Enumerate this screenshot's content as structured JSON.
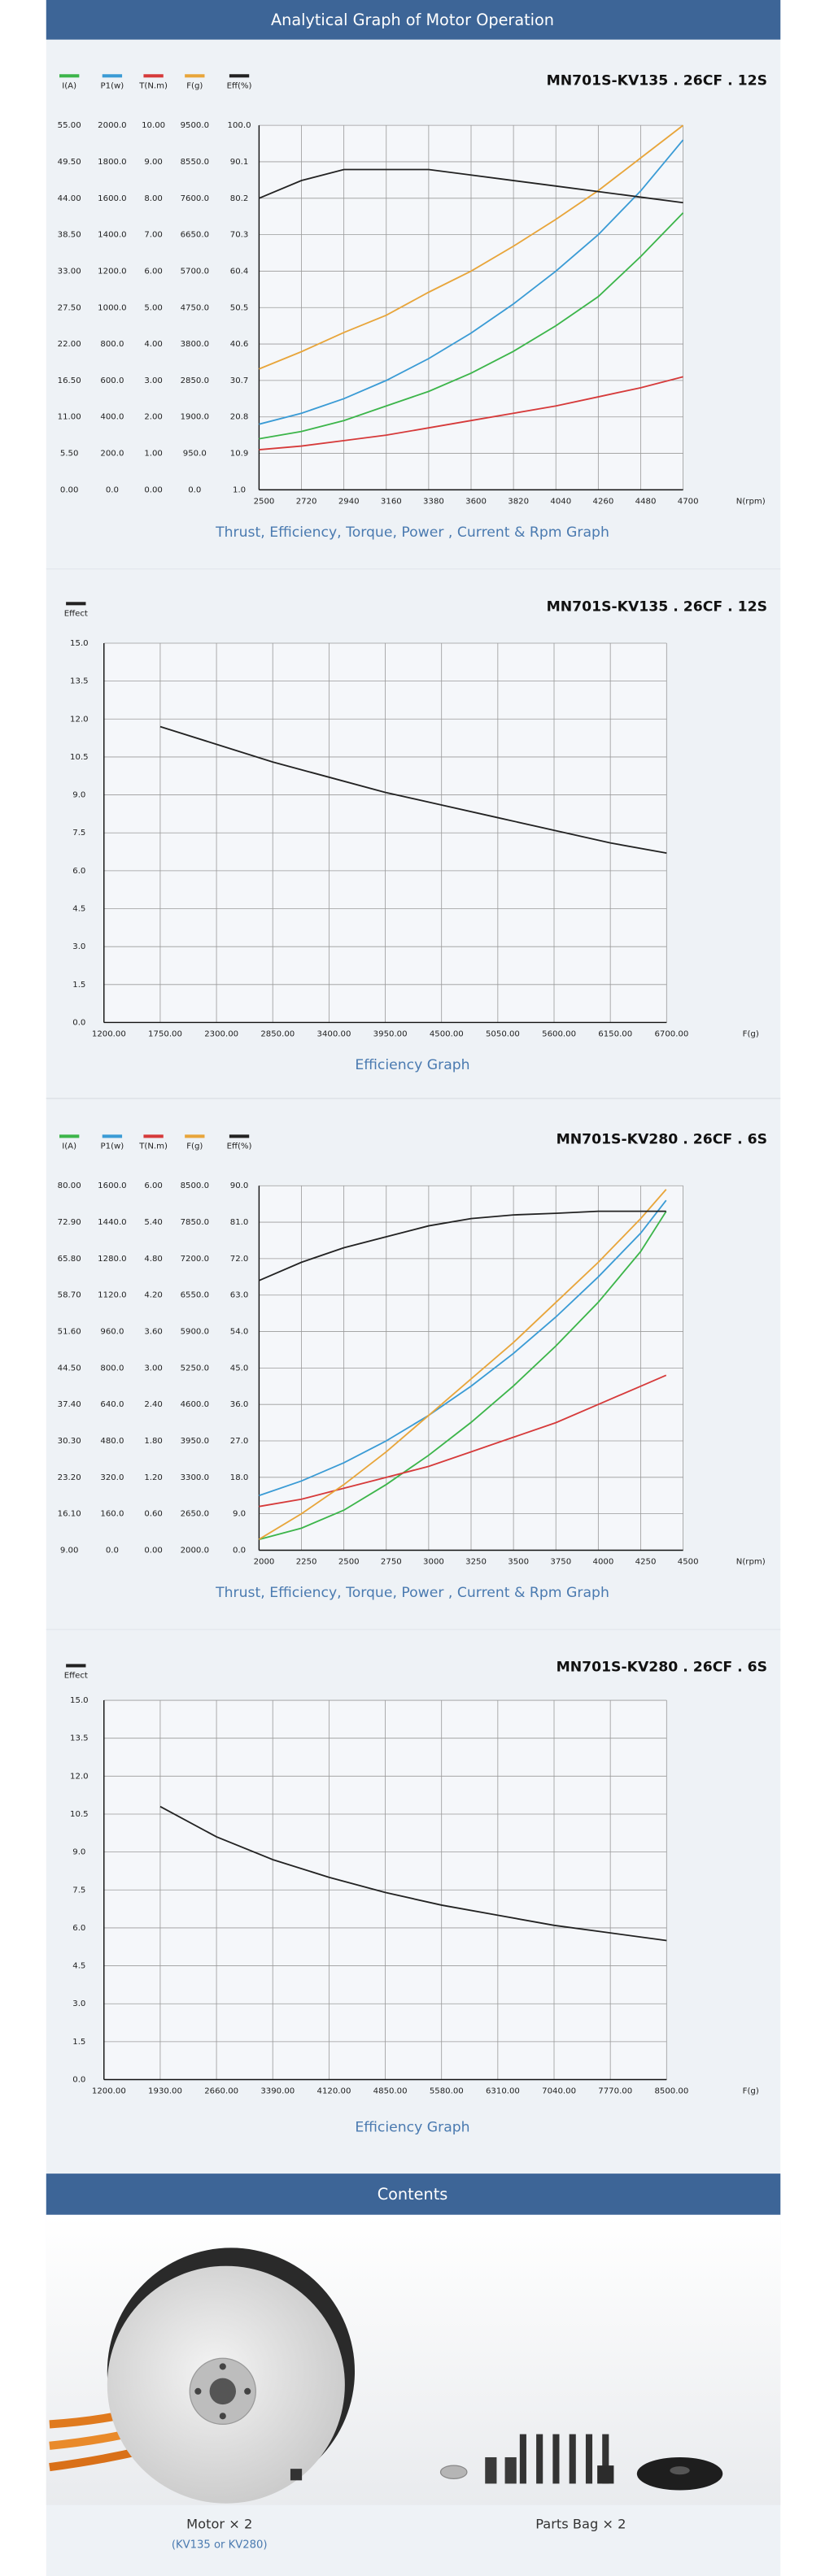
{
  "header": {
    "title": "Analytical Graph of Motor Operation"
  },
  "chart_data": [
    {
      "type": "line",
      "title": "MN701S-KV135 . 26CF . 12S",
      "caption": "Thrust, Efficiency, Torque, Power , Current & Rpm Graph",
      "x_label": "N(rpm)",
      "x": [
        2500,
        2720,
        2940,
        3160,
        3380,
        3600,
        3820,
        4040,
        4260,
        4480,
        4700
      ],
      "xlim": [
        2500,
        4700
      ],
      "xticks": [
        2500,
        2720,
        2940,
        3160,
        3380,
        3600,
        3820,
        4040,
        4260,
        4480,
        4700
      ],
      "grid": true,
      "series": [
        {
          "name": "I(A)",
          "color": "#3cb54a",
          "values": [
            7.7,
            8.8,
            10.45,
            12.65,
            14.85,
            17.6,
            20.9,
            24.75,
            29.15,
            35.2,
            41.8
          ],
          "ylim": [
            0,
            55
          ],
          "yticks": [
            {
              "value": 0,
              "label": "0.00"
            },
            {
              "value": 5.5,
              "label": "5.50"
            },
            {
              "value": 11,
              "label": "11.00"
            },
            {
              "value": 16.5,
              "label": "16.50"
            },
            {
              "value": 22,
              "label": "22.00"
            },
            {
              "value": 27.5,
              "label": "27.50"
            },
            {
              "value": 33,
              "label": "33.00"
            },
            {
              "value": 38.5,
              "label": "38.50"
            },
            {
              "value": 44,
              "label": "44.00"
            },
            {
              "value": 49.5,
              "label": "49.50"
            },
            {
              "value": 55,
              "label": "55.00"
            }
          ]
        },
        {
          "name": "P1(w)",
          "color": "#3a9bd5",
          "values": [
            360,
            420,
            500,
            600,
            720,
            860,
            1020,
            1200,
            1400,
            1640,
            1920
          ],
          "ylim": [
            0,
            2000
          ],
          "yticks": [
            {
              "value": 0,
              "label": "0.0"
            },
            {
              "value": 200,
              "label": "200.0"
            },
            {
              "value": 400,
              "label": "400.0"
            },
            {
              "value": 600,
              "label": "600.0"
            },
            {
              "value": 800,
              "label": "800.0"
            },
            {
              "value": 1000,
              "label": "1000.0"
            },
            {
              "value": 1200,
              "label": "1200.0"
            },
            {
              "value": 1400,
              "label": "1400.0"
            },
            {
              "value": 1600,
              "label": "1600.0"
            },
            {
              "value": 1800,
              "label": "1800.0"
            },
            {
              "value": 2000,
              "label": "2000.0"
            }
          ]
        },
        {
          "name": "T(N.m)",
          "color": "#d63a3a",
          "values": [
            1.1,
            1.2,
            1.35,
            1.5,
            1.7,
            1.9,
            2.1,
            2.3,
            2.55,
            2.8,
            3.1
          ],
          "ylim": [
            0,
            10
          ],
          "yticks": [
            {
              "value": 0,
              "label": "0.00"
            },
            {
              "value": 1,
              "label": "1.00"
            },
            {
              "value": 2,
              "label": "2.00"
            },
            {
              "value": 3,
              "label": "3.00"
            },
            {
              "value": 4,
              "label": "4.00"
            },
            {
              "value": 5,
              "label": "5.00"
            },
            {
              "value": 6,
              "label": "6.00"
            },
            {
              "value": 7,
              "label": "7.00"
            },
            {
              "value": 8,
              "label": "8.00"
            },
            {
              "value": 9,
              "label": "9.00"
            },
            {
              "value": 10,
              "label": "10.00"
            }
          ]
        },
        {
          "name": "F(g)",
          "color": "#e8a53a",
          "values": [
            3150,
            3600,
            4100,
            4550,
            5150,
            5700,
            6350,
            7050,
            7800,
            8650,
            9500
          ],
          "ylim": [
            0,
            9500
          ],
          "yticks": [
            {
              "value": 0,
              "label": "0.0"
            },
            {
              "value": 950,
              "label": "950.0"
            },
            {
              "value": 1900,
              "label": "1900.0"
            },
            {
              "value": 2850,
              "label": "2850.0"
            },
            {
              "value": 3800,
              "label": "3800.0"
            },
            {
              "value": 4750,
              "label": "4750.0"
            },
            {
              "value": 5700,
              "label": "5700.0"
            },
            {
              "value": 6650,
              "label": "6650.0"
            },
            {
              "value": 7600,
              "label": "7600.0"
            },
            {
              "value": 8550,
              "label": "8550.0"
            },
            {
              "value": 9500,
              "label": "9500.0"
            }
          ]
        },
        {
          "name": "Eff(%)",
          "color": "#222222",
          "values": [
            80.2,
            85,
            88,
            88,
            88,
            86.5,
            85,
            83.5,
            82,
            80.5,
            79
          ],
          "ylim": [
            1,
            100
          ],
          "yticks": [
            {
              "value": 1,
              "label": "1.0"
            },
            10.9,
            20.8,
            30.7,
            40.6,
            50.5,
            60.4,
            70.3,
            80.2,
            90.1,
            {
              "value": 100,
              "label": "100.0"
            }
          ]
        }
      ]
    },
    {
      "type": "line",
      "title": "MN701S-KV135 . 26CF . 12S",
      "caption": "Efficiency Graph",
      "x_label": "F(g)",
      "x": [
        1750,
        2300,
        2850,
        3400,
        3950,
        4500,
        5050,
        5600,
        6150,
        6700
      ],
      "xlim": [
        1200,
        6700
      ],
      "xticks": [
        {
          "value": 1200,
          "label": "1200.00"
        },
        {
          "value": 1750,
          "label": "1750.00"
        },
        {
          "value": 2300,
          "label": "2300.00"
        },
        {
          "value": 2850,
          "label": "2850.00"
        },
        {
          "value": 3400,
          "label": "3400.00"
        },
        {
          "value": 3950,
          "label": "3950.00"
        },
        {
          "value": 4500,
          "label": "4500.00"
        },
        {
          "value": 5050,
          "label": "5050.00"
        },
        {
          "value": 5600,
          "label": "5600.00"
        },
        {
          "value": 6150,
          "label": "6150.00"
        },
        {
          "value": 6700,
          "label": "6700.00"
        }
      ],
      "ylim": [
        0,
        15
      ],
      "yticks": [
        {
          "value": 0,
          "label": "0.0"
        },
        1.5,
        {
          "value": 3,
          "label": "3.0"
        },
        4.5,
        {
          "value": 6,
          "label": "6.0"
        },
        7.5,
        {
          "value": 9,
          "label": "9.0"
        },
        10.5,
        {
          "value": 12,
          "label": "12.0"
        },
        13.5,
        {
          "value": 15,
          "label": "15.0"
        }
      ],
      "grid": true,
      "series": [
        {
          "name": "Effect",
          "color": "#222222",
          "values": [
            11.7,
            11.0,
            10.3,
            9.7,
            9.1,
            8.6,
            8.1,
            7.6,
            7.1,
            6.7
          ]
        }
      ]
    },
    {
      "type": "line",
      "title": "MN701S-KV280 . 26CF . 6S",
      "caption": "Thrust, Efficiency, Torque, Power , Current & Rpm Graph",
      "x_label": "N(rpm)",
      "x": [
        2000,
        2250,
        2500,
        2750,
        3000,
        3250,
        3500,
        3750,
        4000,
        4250,
        4400
      ],
      "xlim": [
        2000,
        4500
      ],
      "xticks": [
        2000,
        2250,
        2500,
        2750,
        3000,
        3250,
        3500,
        3750,
        4000,
        4250,
        4500
      ],
      "grid": true,
      "series": [
        {
          "name": "I(A)",
          "color": "#3cb54a",
          "values": [
            11.1,
            13.3,
            16.8,
            21.8,
            27.5,
            33.9,
            41.0,
            48.8,
            57.3,
            67.2,
            75.0
          ],
          "ylim": [
            9,
            80
          ],
          "yticks": [
            {
              "value": 9,
              "label": "9.00"
            },
            {
              "value": 16.1,
              "label": "16.10"
            },
            {
              "value": 23.2,
              "label": "23.20"
            },
            {
              "value": 30.3,
              "label": "30.30"
            },
            {
              "value": 37.4,
              "label": "37.40"
            },
            {
              "value": 44.5,
              "label": "44.50"
            },
            {
              "value": 51.6,
              "label": "51.60"
            },
            {
              "value": 58.7,
              "label": "58.70"
            },
            {
              "value": 65.8,
              "label": "65.80"
            },
            {
              "value": 72.9,
              "label": "72.90"
            },
            {
              "value": 80,
              "label": "80.00"
            }
          ]
        },
        {
          "name": "P1(w)",
          "color": "#3a9bd5",
          "values": [
            240,
            304,
            384,
            480,
            592,
            720,
            864,
            1024,
            1200,
            1392,
            1536
          ],
          "ylim": [
            0,
            1600
          ],
          "yticks": [
            {
              "value": 0,
              "label": "0.0"
            },
            {
              "value": 160,
              "label": "160.0"
            },
            {
              "value": 320,
              "label": "320.0"
            },
            {
              "value": 480,
              "label": "480.0"
            },
            {
              "value": 640,
              "label": "640.0"
            },
            {
              "value": 800,
              "label": "800.0"
            },
            {
              "value": 960,
              "label": "960.0"
            },
            {
              "value": 1120,
              "label": "1120.0"
            },
            {
              "value": 1280,
              "label": "1280.0"
            },
            {
              "value": 1440,
              "label": "1440.0"
            },
            {
              "value": 1600,
              "label": "1600.0"
            }
          ]
        },
        {
          "name": "T(N.m)",
          "color": "#d63a3a",
          "values": [
            0.72,
            0.84,
            1.02,
            1.2,
            1.38,
            1.62,
            1.86,
            2.1,
            2.4,
            2.7,
            2.88
          ],
          "ylim": [
            0,
            6
          ],
          "yticks": [
            {
              "value": 0,
              "label": "0.00"
            },
            {
              "value": 0.6,
              "label": "0.60"
            },
            {
              "value": 1.2,
              "label": "1.20"
            },
            {
              "value": 1.8,
              "label": "1.80"
            },
            {
              "value": 2.4,
              "label": "2.40"
            },
            {
              "value": 3,
              "label": "3.00"
            },
            {
              "value": 3.6,
              "label": "3.60"
            },
            {
              "value": 4.2,
              "label": "4.20"
            },
            {
              "value": 4.8,
              "label": "4.80"
            },
            {
              "value": 5.4,
              "label": "5.40"
            },
            {
              "value": 6,
              "label": "6.00"
            }
          ]
        },
        {
          "name": "F(g)",
          "color": "#e8a53a",
          "values": [
            2195,
            2650,
            3170,
            3755,
            4405,
            5055,
            5705,
            6420,
            7135,
            7915,
            8435
          ],
          "ylim": [
            2000,
            8500
          ],
          "yticks": [
            {
              "value": 2000,
              "label": "2000.0"
            },
            {
              "value": 2650,
              "label": "2650.0"
            },
            {
              "value": 3300,
              "label": "3300.0"
            },
            {
              "value": 3950,
              "label": "3950.0"
            },
            {
              "value": 4600,
              "label": "4600.0"
            },
            {
              "value": 5250,
              "label": "5250.0"
            },
            {
              "value": 5900,
              "label": "5900.0"
            },
            {
              "value": 6550,
              "label": "6550.0"
            },
            {
              "value": 7200,
              "label": "7200.0"
            },
            {
              "value": 7850,
              "label": "7850.0"
            },
            {
              "value": 8500,
              "label": "8500.0"
            }
          ]
        },
        {
          "name": "Eff(%)",
          "color": "#222222",
          "values": [
            66.6,
            71.1,
            74.7,
            77.4,
            80.1,
            81.9,
            82.8,
            83.2,
            83.7,
            83.7,
            83.7
          ],
          "ylim": [
            0,
            90
          ],
          "yticks": [
            {
              "value": 0,
              "label": "0.0"
            },
            {
              "value": 9,
              "label": "9.0"
            },
            {
              "value": 18,
              "label": "18.0"
            },
            {
              "value": 27,
              "label": "27.0"
            },
            {
              "value": 36,
              "label": "36.0"
            },
            {
              "value": 45,
              "label": "45.0"
            },
            {
              "value": 54,
              "label": "54.0"
            },
            {
              "value": 63,
              "label": "63.0"
            },
            {
              "value": 72,
              "label": "72.0"
            },
            {
              "value": 81,
              "label": "81.0"
            },
            {
              "value": 90,
              "label": "90.0"
            }
          ]
        }
      ]
    },
    {
      "type": "line",
      "title": "MN701S-KV280 . 26CF . 6S",
      "caption": "Efficiency Graph",
      "x_label": "F(g)",
      "x": [
        1930,
        2660,
        3390,
        4120,
        4850,
        5580,
        6310,
        7040,
        7770,
        8500
      ],
      "xlim": [
        1200,
        8500
      ],
      "xticks": [
        {
          "value": 1200,
          "label": "1200.00"
        },
        {
          "value": 1930,
          "label": "1930.00"
        },
        {
          "value": 2660,
          "label": "2660.00"
        },
        {
          "value": 3390,
          "label": "3390.00"
        },
        {
          "value": 4120,
          "label": "4120.00"
        },
        {
          "value": 4850,
          "label": "4850.00"
        },
        {
          "value": 5580,
          "label": "5580.00"
        },
        {
          "value": 6310,
          "label": "6310.00"
        },
        {
          "value": 7040,
          "label": "7040.00"
        },
        {
          "value": 7770,
          "label": "7770.00"
        },
        {
          "value": 8500,
          "label": "8500.00"
        }
      ],
      "ylim": [
        0,
        15
      ],
      "yticks": [
        {
          "value": 0,
          "label": "0.0"
        },
        1.5,
        {
          "value": 3,
          "label": "3.0"
        },
        4.5,
        {
          "value": 6,
          "label": "6.0"
        },
        7.5,
        {
          "value": 9,
          "label": "9.0"
        },
        10.5,
        {
          "value": 12,
          "label": "12.0"
        },
        13.5,
        {
          "value": 15,
          "label": "15.0"
        }
      ],
      "grid": true,
      "series": [
        {
          "name": "Effect",
          "color": "#222222",
          "values": [
            10.8,
            9.6,
            8.7,
            8.0,
            7.4,
            6.9,
            6.5,
            6.1,
            5.8,
            5.5
          ]
        }
      ]
    }
  ],
  "contents": {
    "title": "Contents",
    "items": [
      {
        "label": "Motor × 2",
        "note": "(KV135 or KV280)"
      },
      {
        "label": "Parts Bag × 2"
      }
    ]
  }
}
